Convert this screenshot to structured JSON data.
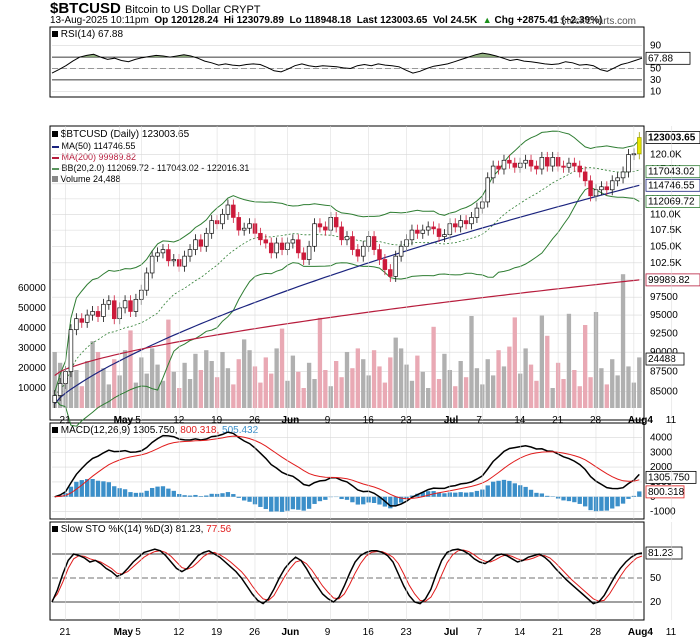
{
  "header": {
    "symbol": "$BTCUSD",
    "description": "Bitcoin to US Dollar CRYPT",
    "date": "13-Aug-2025 10:11pm",
    "open": "Op 120128.24",
    "high": "Hi 123079.89",
    "low": "Lo 118948.18",
    "last": "Last 123003.65",
    "vol": "Vol 24.5K",
    "chg": "Chg +2875.41 (+2.39%)",
    "chg_arrow": "▲",
    "brand": "© StockCharts.com"
  },
  "panels": {
    "rsi": {
      "label": "RSI(14) 67.88"
    },
    "price": {
      "label": "$BTCUSD (Daily) 123003.65",
      "ma50": "MA(50) 114746.55",
      "ma200": "MA(200) 99989.82",
      "bb": "BB(20,2.0) 112069.72 - 117043.02 - 122016.31",
      "volume": "Volume 24,488"
    },
    "macd": {
      "label": "MACD(12,26,9) 1305.750,",
      "signal": "800.318,",
      "hist": "505.432"
    },
    "sto": {
      "label": "Slow STO %K(14) %D(3) 81.23,",
      "d": "77.56"
    }
  },
  "colors": {
    "up": "#111111",
    "down": "#cc1a3a",
    "last_bar": "#e6e600",
    "ma50": "#1a237e",
    "ma200": "#b71c3c",
    "bb": "#2e7d32",
    "vol_up": "#b0b0b0",
    "vol_down": "#e9a9b4",
    "hist": "#3b8fc9",
    "signal": "#e11d1d",
    "grid": "#d8d8d8"
  },
  "chart_data": [
    {
      "type": "line",
      "title": "RSI(14) 67.88",
      "ylim": [
        0,
        100
      ],
      "ticks": [
        10,
        30,
        50,
        70,
        90
      ],
      "levels": [
        30,
        70
      ],
      "last_value": "67.88",
      "series": [
        {
          "name": "RSI(14)",
          "values": [
            42,
            48,
            55,
            63,
            70,
            73,
            75,
            70,
            66,
            68,
            64,
            62,
            66,
            69,
            71,
            73,
            72,
            70,
            72,
            74,
            72,
            68,
            63,
            60,
            56,
            58,
            56,
            55,
            57,
            58,
            57,
            52,
            46,
            44,
            49,
            55,
            58,
            55,
            53,
            55,
            54,
            53,
            51,
            50,
            55,
            57,
            55,
            58,
            56,
            55,
            53,
            47,
            42,
            45,
            50,
            54,
            56,
            58,
            62,
            66,
            70,
            74,
            77,
            75,
            72,
            68,
            64,
            66,
            63,
            62,
            60,
            58,
            57,
            58,
            62,
            60,
            56,
            57,
            55,
            48,
            45,
            51,
            57,
            60,
            64,
            68
          ]
        }
      ]
    },
    {
      "type": "candlestick",
      "title": "$BTCUSD (Daily) 123003.65",
      "ylim": [
        82500,
        124000
      ],
      "yscale": "log",
      "ticks": [
        85000,
        87500,
        90000,
        92500,
        95000,
        97500,
        100000,
        102500,
        105000,
        107500,
        110000,
        112500,
        115000,
        117500,
        120000
      ],
      "tick_labels": [
        "85000",
        "87500",
        "90000",
        "92500",
        "95000",
        "97500",
        "100.0K",
        "102.5K",
        "105.0K",
        "107.5K",
        "110.0K",
        "112.5K",
        "115.0K",
        "117.5K",
        "120.0K"
      ],
      "price_tags": [
        {
          "label": "123003.65",
          "value": 123003.65,
          "style": "last"
        },
        {
          "label": "117043.02",
          "value": 117043.02,
          "style": "bb"
        },
        {
          "label": "114746.55",
          "value": 114746.55,
          "style": "ma50"
        },
        {
          "label": "112069.72",
          "value": 112069.72,
          "style": "bb"
        },
        {
          "label": "99989.82",
          "value": 99989.82,
          "style": "ma200"
        }
      ],
      "x_labels": [
        {
          "label": "21",
          "i": 2
        },
        {
          "label": "May",
          "i": 12
        },
        {
          "label": "5",
          "i": 16
        },
        {
          "label": "12",
          "i": 23
        },
        {
          "label": "19",
          "i": 30
        },
        {
          "label": "26",
          "i": 37
        },
        {
          "label": "Jun",
          "i": 43
        },
        {
          "label": "9",
          "i": 51
        },
        {
          "label": "16",
          "i": 58
        },
        {
          "label": "23",
          "i": 65
        },
        {
          "label": "Jul",
          "i": 73
        },
        {
          "label": "7",
          "i": 79
        },
        {
          "label": "14",
          "i": 86
        },
        {
          "label": "21",
          "i": 93
        },
        {
          "label": "28",
          "i": 100
        },
        {
          "label": "Aug4",
          "i": 107
        },
        {
          "label": "11",
          "i": 114
        }
      ],
      "close": [
        84500,
        86000,
        87500,
        93000,
        94500,
        94000,
        95000,
        95500,
        94800,
        96500,
        97000,
        94500,
        96000,
        97000,
        95500,
        97200,
        98500,
        101000,
        103500,
        104000,
        104500,
        102800,
        103000,
        102000,
        103500,
        104500,
        106000,
        105000,
        107000,
        109000,
        108500,
        110000,
        111500,
        109500,
        107500,
        107800,
        108500,
        107000,
        106000,
        105500,
        104000,
        105500,
        104500,
        105500,
        106000,
        104000,
        103000,
        105000,
        108500,
        108000,
        107500,
        109500,
        108000,
        106000,
        106500,
        104500,
        103500,
        105000,
        106500,
        104500,
        103000,
        101500,
        100500,
        103500,
        105000,
        106000,
        107500,
        107000,
        107500,
        108000,
        107700,
        106500,
        106800,
        108500,
        108000,
        109000,
        108500,
        109500,
        111000,
        112000,
        116000,
        118000,
        117500,
        119000,
        118500,
        117800,
        118500,
        119000,
        118000,
        117500,
        119500,
        118000,
        119500,
        118000,
        117800,
        118500,
        118000,
        117000,
        115500,
        113000,
        114000,
        114500,
        114000,
        115500,
        116000,
        117000,
        120000,
        120128,
        123003
      ],
      "volume_max": 60000,
      "volume_ticks": [
        10000,
        20000,
        30000,
        40000,
        50000,
        60000
      ],
      "volume_last_label": "24488"
    },
    {
      "type": "line",
      "title": "MACD(12,26,9)",
      "ylim": [
        -1500,
        4500
      ],
      "ticks": [
        -1000,
        0,
        1000,
        2000,
        3000,
        4000
      ],
      "tag_labels": [
        "1305.750",
        "800.318"
      ],
      "series": [
        {
          "name": "MACD"
        },
        {
          "name": "Signal"
        },
        {
          "name": "Histogram"
        }
      ]
    },
    {
      "type": "line",
      "title": "Slow STO %K(14) %D(3)",
      "ylim": [
        0,
        100
      ],
      "ticks": [
        20,
        50,
        80
      ],
      "tag_labels": [
        "81.23",
        "77.56"
      ],
      "series": [
        {
          "name": "%K",
          "values": [
            20,
            35,
            55,
            72,
            80,
            78,
            75,
            70,
            72,
            68,
            62,
            58,
            52,
            55,
            62,
            70,
            76,
            82,
            84,
            86,
            84,
            78,
            70,
            62,
            58,
            62,
            70,
            78,
            82,
            84,
            80,
            76,
            70,
            64,
            58,
            50,
            40,
            30,
            22,
            18,
            24,
            36,
            50,
            62,
            70,
            76,
            72,
            62,
            50,
            40,
            30,
            24,
            20,
            26,
            40,
            56,
            70,
            78,
            82,
            84,
            84,
            82,
            78,
            70,
            55,
            40,
            28,
            20,
            18,
            24,
            36,
            55,
            72,
            82,
            85,
            86,
            84,
            80,
            74,
            70,
            68,
            72,
            78,
            80,
            78,
            74,
            70,
            72,
            76,
            78,
            80,
            76,
            70,
            62,
            55,
            48,
            42,
            36,
            30,
            24,
            18,
            20,
            28,
            40,
            52,
            62,
            70,
            76,
            80,
            81.23
          ]
        },
        {
          "name": "%D",
          "values": [
            22,
            30,
            45,
            62,
            74,
            78,
            77,
            74,
            72,
            70,
            66,
            62,
            56,
            55,
            58,
            64,
            70,
            76,
            80,
            83,
            84,
            82,
            77,
            70,
            63,
            61,
            64,
            70,
            77,
            81,
            82,
            79,
            75,
            70,
            64,
            58,
            50,
            40,
            31,
            24,
            22,
            28,
            40,
            52,
            62,
            70,
            72,
            68,
            60,
            50,
            40,
            32,
            25,
            24,
            30,
            42,
            56,
            68,
            77,
            82,
            83,
            83,
            80,
            76,
            68,
            55,
            41,
            30,
            22,
            21,
            26,
            38,
            54,
            69,
            79,
            84,
            85,
            83,
            79,
            74,
            71,
            70,
            73,
            77,
            79,
            77,
            74,
            72,
            73,
            75,
            78,
            78,
            75,
            69,
            62,
            55,
            48,
            42,
            36,
            30,
            24,
            21,
            22,
            30,
            41,
            52,
            62,
            69,
            75,
            77.56
          ]
        }
      ]
    }
  ]
}
